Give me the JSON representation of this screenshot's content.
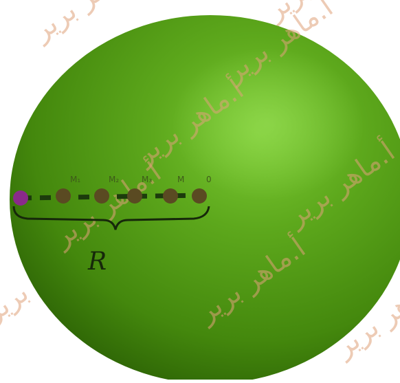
{
  "figure": {
    "radius_label": "R",
    "points": [
      {
        "label": "M₁",
        "color": "#5a4a22"
      },
      {
        "label": "M₂",
        "color": "#5a4a22"
      },
      {
        "label": "M₃",
        "color": "#5a4a22"
      },
      {
        "label": "M",
        "color": "#5a4a22"
      },
      {
        "label": "0",
        "color": "#5a4a22"
      }
    ],
    "edge_point_color": "#8a2a8a",
    "sphere_colors": {
      "highlight": "#6fc02a",
      "mid": "#4f9a14",
      "shadow": "#2f6a06"
    }
  },
  "watermark": {
    "text": "أ.ماهر برير"
  }
}
